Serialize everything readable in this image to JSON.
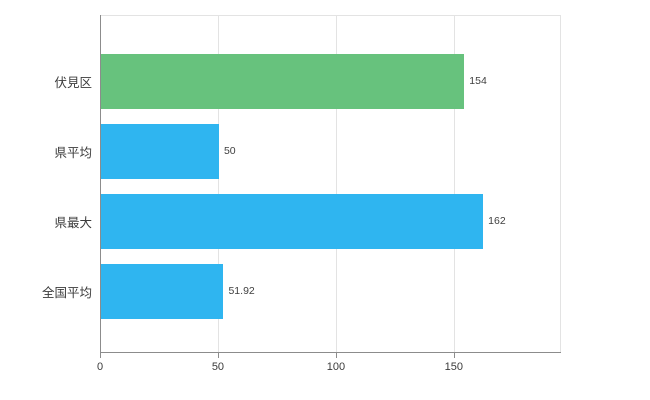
{
  "chart_data": {
    "type": "bar",
    "orientation": "horizontal",
    "title": "",
    "categories": [
      "伏見区",
      "県平均",
      "県最大",
      "全国平均"
    ],
    "values": [
      154,
      50,
      162,
      51.92
    ],
    "value_labels": [
      "154",
      "50",
      "162",
      "51.92"
    ],
    "bar_colors": [
      "#67c27d",
      "#2fb5f0",
      "#2fb5f0",
      "#2fb5f0"
    ],
    "xlim": [
      0,
      195
    ],
    "x_ticks": [
      0,
      50,
      100,
      150
    ],
    "grid": true,
    "legend": "none",
    "colors": {
      "grid": "#e3e3e3",
      "axis": "#8c8c8c",
      "text": "#3b3b3b",
      "background": "#ffffff"
    }
  }
}
